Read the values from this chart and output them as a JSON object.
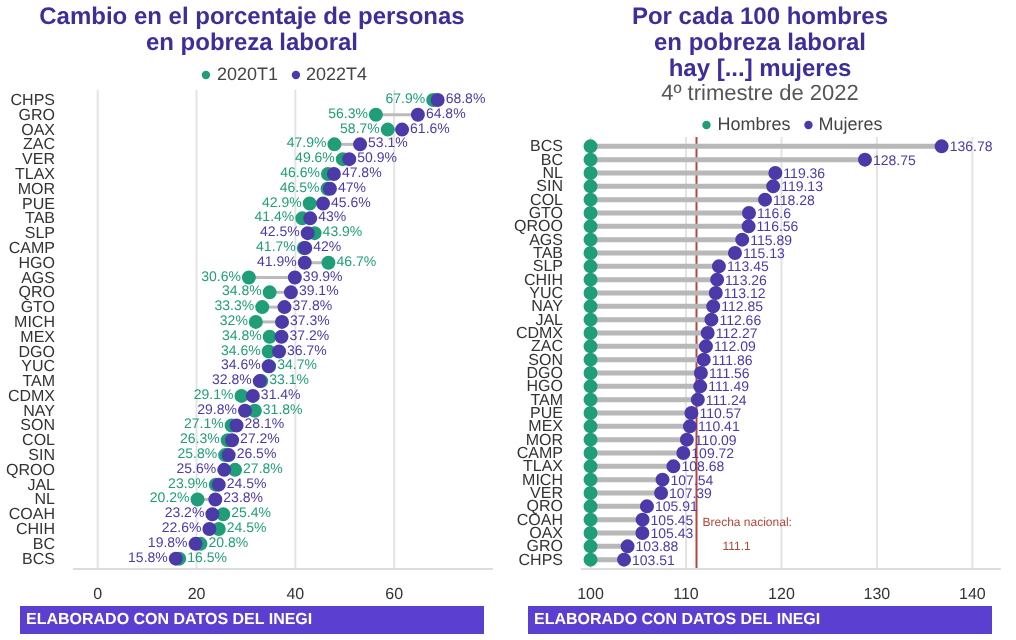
{
  "chart_data": [
    {
      "type": "scatter",
      "orientation": "horizontal",
      "title": "Cambio en el porcentaje de personas\nen pobreza laboral",
      "categories": [
        "CHPS",
        "GRO",
        "OAX",
        "ZAC",
        "VER",
        "TLAX",
        "MOR",
        "PUE",
        "TAB",
        "SLP",
        "CAMP",
        "HGO",
        "AGS",
        "QRO",
        "GTO",
        "MICH",
        "MEX",
        "DGO",
        "YUC",
        "TAM",
        "CDMX",
        "NAY",
        "SON",
        "COL",
        "SIN",
        "QROO",
        "JAL",
        "NL",
        "COAH",
        "CHIH",
        "BC",
        "BCS"
      ],
      "series": [
        {
          "name": "2020T1",
          "color": "#1f9e78",
          "values": [
            67.9,
            56.3,
            58.7,
            47.9,
            49.6,
            46.6,
            46.5,
            42.9,
            41.4,
            43.9,
            41.7,
            46.7,
            30.6,
            34.8,
            33.3,
            32,
            34.8,
            34.6,
            34.7,
            33.1,
            29.1,
            31.8,
            27.1,
            26.3,
            25.8,
            27.8,
            23.9,
            20.2,
            25.4,
            24.5,
            20.8,
            16.5
          ],
          "value_labels": [
            "67.9%",
            "56.3%",
            "58.7%",
            "47.9%",
            "49.6%",
            "46.6%",
            "46.5%",
            "42.9%",
            "41.4%",
            "43.9%",
            "41.7%",
            "46.7%",
            "30.6%",
            "34.8%",
            "33.3%",
            "32%",
            "34.8%",
            "34.6%",
            "34.7%",
            "33.1%",
            "29.1%",
            "31.8%",
            "27.1%",
            "26.3%",
            "25.8%",
            "27.8%",
            "23.9%",
            "20.2%",
            "25.4%",
            "24.5%",
            "20.8%",
            "16.5%"
          ]
        },
        {
          "name": "2022T4",
          "color": "#4b3aa8",
          "values": [
            68.8,
            64.8,
            61.6,
            53.1,
            50.9,
            47.8,
            47,
            45.6,
            43,
            42.5,
            42,
            41.9,
            39.9,
            39.1,
            37.8,
            37.3,
            37.2,
            36.7,
            34.6,
            32.8,
            31.4,
            29.8,
            28.1,
            27.2,
            26.5,
            25.6,
            24.5,
            23.8,
            23.2,
            22.6,
            19.8,
            15.8
          ],
          "value_labels": [
            "68.8%",
            "64.8%",
            "61.6%",
            "53.1%",
            "50.9%",
            "47.8%",
            "47%",
            "45.6%",
            "43%",
            "42.5%",
            "42%",
            "41.9%",
            "39.9%",
            "39.1%",
            "37.8%",
            "37.3%",
            "37.2%",
            "36.7%",
            "34.6%",
            "32.8%",
            "31.4%",
            "29.8%",
            "28.1%",
            "27.2%",
            "26.5%",
            "25.6%",
            "24.5%",
            "23.8%",
            "23.2%",
            "22.6%",
            "19.8%",
            "15.8%"
          ]
        }
      ],
      "xlim": [
        -5,
        80
      ],
      "xticks": [
        0,
        20,
        40,
        60
      ],
      "grid": "x",
      "legend": "top",
      "marker": "circle",
      "annotations": [
        "ELABORADO CON DATOS DEL INEGI"
      ]
    },
    {
      "type": "lollipop",
      "orientation": "horizontal",
      "title": "Por cada 100 hombres\nen pobreza laboral\nhay [...] mujeres",
      "subtitle": "4º trimestre de 2022",
      "categories": [
        "BCS",
        "BC",
        "NL",
        "SIN",
        "COL",
        "GTO",
        "QROO",
        "AGS",
        "TAB",
        "SLP",
        "CHIH",
        "YUC",
        "NAY",
        "JAL",
        "CDMX",
        "ZAC",
        "SON",
        "DGO",
        "HGO",
        "TAM",
        "PUE",
        "MEX",
        "MOR",
        "CAMP",
        "TLAX",
        "MICH",
        "VER",
        "QRO",
        "COAH",
        "OAX",
        "GRO",
        "CHPS"
      ],
      "series": [
        {
          "name": "Hombres",
          "color": "#1f9e78",
          "values": [
            100,
            100,
            100,
            100,
            100,
            100,
            100,
            100,
            100,
            100,
            100,
            100,
            100,
            100,
            100,
            100,
            100,
            100,
            100,
            100,
            100,
            100,
            100,
            100,
            100,
            100,
            100,
            100,
            100,
            100,
            100,
            100
          ]
        },
        {
          "name": "Mujeres",
          "color": "#4b3aa8",
          "values": [
            136.78,
            128.75,
            119.36,
            119.13,
            118.28,
            116.6,
            116.56,
            115.89,
            115.13,
            113.45,
            113.26,
            113.12,
            112.85,
            112.66,
            112.27,
            112.09,
            111.86,
            111.56,
            111.49,
            111.24,
            110.57,
            110.41,
            110.09,
            109.72,
            108.68,
            107.54,
            107.39,
            105.91,
            105.45,
            105.43,
            103.88,
            103.51
          ],
          "value_labels": [
            "136.78",
            "128.75",
            "119.36",
            "119.13",
            "118.28",
            "116.6",
            "116.56",
            "115.89",
            "115.13",
            "113.45",
            "113.26",
            "113.12",
            "112.85",
            "112.66",
            "112.27",
            "112.09",
            "111.86",
            "111.56",
            "111.49",
            "111.24",
            "110.57",
            "110.41",
            "110.09",
            "109.72",
            "108.68",
            "107.54",
            "107.39",
            "105.91",
            "105.45",
            "105.43",
            "103.88",
            "103.51"
          ]
        }
      ],
      "xlim": [
        99,
        143
      ],
      "xticks": [
        100,
        110,
        120,
        130,
        140
      ],
      "grid": "x",
      "legend": "top",
      "marker": "circle",
      "ref_lines": [
        {
          "axis": "x",
          "value": 111.1,
          "label": "Brecha nacional:\n111.1",
          "color": "#b5463c"
        }
      ],
      "annotations": [
        "ELABORADO CON DATOS DEL INEGI"
      ]
    }
  ]
}
